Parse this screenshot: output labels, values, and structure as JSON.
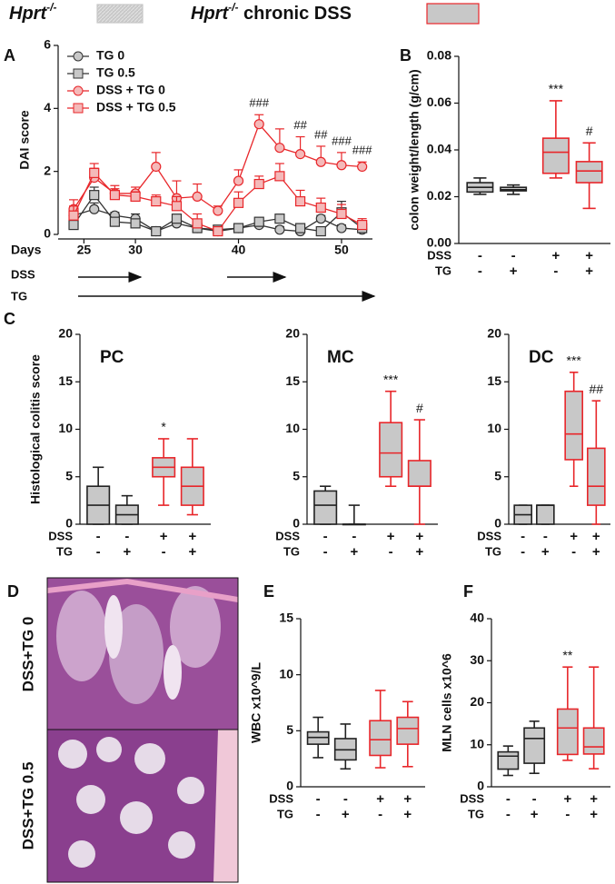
{
  "header": {
    "items": [
      {
        "text": "Hprt",
        "sup": "-/-",
        "fill": "#c8c8c8",
        "edge": "#c8c8c8"
      },
      {
        "text": "Hprt",
        "sup": "-/-",
        "suffix": " chronic DSS",
        "fill": "#c8c8c8",
        "edge": "#e8262a"
      }
    ]
  },
  "histology": {
    "panel": "D",
    "labels": [
      "DSS+TG  0",
      "DSS+TG  0.5"
    ]
  },
  "chart_data": [
    {
      "type": "line",
      "panel": "A",
      "ylabel": "DAI score",
      "xlabel": "Days",
      "arrow_labels": [
        "DSS",
        "TG"
      ],
      "x": [
        24,
        26,
        28,
        30,
        32,
        34,
        36,
        38,
        40,
        42,
        44,
        46,
        48,
        50,
        52
      ],
      "xlim": [
        22.5,
        53
      ],
      "xticks": [
        25,
        30,
        40,
        50
      ],
      "ylim": [
        0,
        6
      ],
      "yticks": [
        0,
        2,
        4,
        6
      ],
      "legend": "upper left",
      "series": [
        {
          "name": "TG 0",
          "marker": "circle",
          "color": "#333333",
          "fill": "#c8c8c8",
          "values": [
            0.6,
            0.8,
            0.6,
            0.5,
            0.1,
            0.35,
            0.2,
            0.1,
            0.2,
            0.3,
            0.15,
            0.1,
            0.5,
            0.2,
            0.15
          ],
          "errors": [
            0.1,
            0.2,
            0.1,
            0.15,
            0.1,
            0.1,
            0.1,
            0.05,
            0.1,
            0.1,
            0.1,
            0.1,
            0.1,
            0.1,
            0.1
          ]
        },
        {
          "name": "TG 0.5",
          "marker": "square",
          "color": "#333333",
          "fill": "#c8c8c8",
          "values": [
            0.3,
            1.25,
            0.4,
            0.35,
            0.1,
            0.5,
            0.2,
            0.15,
            0.2,
            0.4,
            0.5,
            0.2,
            0.1,
            0.7,
            0.2
          ],
          "errors": [
            0.1,
            0.25,
            0.1,
            0.1,
            0.05,
            0.1,
            0.1,
            0.05,
            0.1,
            0.1,
            0.1,
            0.1,
            0.05,
            0.35,
            0.1
          ]
        },
        {
          "name": "DSS + TG 0",
          "marker": "circle",
          "color": "#e8262a",
          "fill": "#f4b9b9",
          "values": [
            0.8,
            1.8,
            1.3,
            1.3,
            2.15,
            1.15,
            1.2,
            0.75,
            1.7,
            3.5,
            2.75,
            2.55,
            2.3,
            2.2,
            2.15
          ],
          "errors": [
            0.3,
            0.3,
            0.25,
            0.2,
            0.45,
            0.55,
            0.4,
            0.15,
            0.35,
            0.3,
            0.6,
            0.55,
            0.5,
            0.4,
            0.15
          ],
          "significance": [
            null,
            null,
            null,
            null,
            null,
            null,
            null,
            null,
            null,
            "###",
            null,
            "##",
            "##",
            "###",
            "###"
          ]
        },
        {
          "name": "DSS + TG 0.5",
          "marker": "square",
          "color": "#e8262a",
          "fill": "#f4b9b9",
          "values": [
            0.6,
            1.95,
            1.25,
            1.2,
            1.05,
            0.9,
            0.35,
            0.1,
            1.0,
            1.6,
            1.85,
            1.05,
            0.85,
            0.65,
            0.3
          ],
          "errors": [
            0.3,
            0.3,
            0.2,
            0.15,
            0.2,
            0.3,
            0.3,
            0.1,
            0.35,
            0.25,
            0.4,
            0.35,
            0.3,
            0.3,
            0.2
          ]
        }
      ]
    },
    {
      "type": "box",
      "panel": "B",
      "ylabel": "colon weight/length (g/cm)",
      "ylim": [
        0,
        0.08
      ],
      "yticks": [
        {
          "value": 0,
          "label": "0.00"
        },
        {
          "value": 0.02,
          "label": "0.02"
        },
        {
          "value": 0.04,
          "label": "0.04"
        },
        {
          "value": 0.06,
          "label": "0.06"
        },
        {
          "value": 0.08,
          "label": "0.08"
        }
      ],
      "fill": "#c8c8c8",
      "boxes": [
        {
          "low": 0.021,
          "q1": 0.022,
          "median": 0.024,
          "q3": 0.026,
          "high": 0.028,
          "color": "#222222"
        },
        {
          "low": 0.021,
          "q1": 0.0225,
          "median": 0.023,
          "q3": 0.024,
          "high": 0.025,
          "color": "#222222"
        },
        {
          "low": 0.028,
          "q1": 0.03,
          "median": 0.039,
          "q3": 0.045,
          "high": 0.061,
          "color": "#e8262a"
        },
        {
          "low": 0.015,
          "q1": 0.026,
          "median": 0.031,
          "q3": 0.035,
          "high": 0.043,
          "color": "#e8262a"
        }
      ],
      "significance": [
        null,
        null,
        "***",
        "#"
      ],
      "factors": [
        {
          "name": "DSS",
          "levels": [
            "-",
            "-",
            "+",
            "+"
          ]
        },
        {
          "name": "TG",
          "levels": [
            "-",
            "+",
            "-",
            "+"
          ]
        }
      ]
    },
    {
      "type": "box",
      "panel": "C",
      "title": "PC",
      "ylabel": "Histological colitis score",
      "ylim": [
        0,
        20
      ],
      "yticks": [
        0,
        5,
        10,
        15,
        20
      ],
      "fill": "#c8c8c8",
      "boxes": [
        {
          "low": 0,
          "q1": 0,
          "median": 2,
          "q3": 4,
          "high": 6,
          "color": "#222222"
        },
        {
          "low": 0,
          "q1": 0,
          "median": 1,
          "q3": 2,
          "high": 3,
          "color": "#222222"
        },
        {
          "low": 2,
          "q1": 5,
          "median": 6,
          "q3": 7,
          "high": 9,
          "color": "#e8262a"
        },
        {
          "low": 1,
          "q1": 2,
          "median": 4,
          "q3": 6,
          "high": 9,
          "color": "#e8262a"
        }
      ],
      "significance": [
        null,
        null,
        "*",
        null
      ],
      "factors": [
        {
          "name": "DSS",
          "levels": [
            "-",
            "-",
            "+",
            "+"
          ]
        },
        {
          "name": "TG",
          "levels": [
            "-",
            "+",
            "-",
            "+"
          ]
        }
      ]
    },
    {
      "type": "box",
      "title": "MC",
      "ylim": [
        0,
        20
      ],
      "yticks": [
        0,
        5,
        10,
        15,
        20
      ],
      "fill": "#c8c8c8",
      "boxes": [
        {
          "low": 0,
          "q1": 0,
          "median": 2,
          "q3": 3.5,
          "high": 4,
          "color": "#222222"
        },
        {
          "low": 0,
          "q1": 0,
          "median": 0,
          "q3": 0,
          "high": 2,
          "color": "#222222"
        },
        {
          "low": 4,
          "q1": 5,
          "median": 7.5,
          "q3": 10.7,
          "high": 14,
          "color": "#e8262a"
        },
        {
          "low": 0,
          "q1": 4,
          "median": 4,
          "q3": 6.7,
          "high": 11,
          "color": "#e8262a"
        }
      ],
      "significance": [
        null,
        null,
        "***",
        "#"
      ],
      "factors": [
        {
          "name": "DSS",
          "levels": [
            "-",
            "-",
            "+",
            "+"
          ]
        },
        {
          "name": "TG",
          "levels": [
            "-",
            "+",
            "-",
            "+"
          ]
        }
      ]
    },
    {
      "type": "box",
      "title": "DC",
      "ylim": [
        0,
        20
      ],
      "yticks": [
        0,
        5,
        10,
        15,
        20
      ],
      "fill": "#c8c8c8",
      "boxes": [
        {
          "low": 0,
          "q1": 0,
          "median": 1,
          "q3": 2,
          "high": 2,
          "color": "#222222"
        },
        {
          "low": 0,
          "q1": 0,
          "median": 2,
          "q3": 2,
          "high": 2,
          "color": "#222222"
        },
        {
          "low": 4,
          "q1": 6.8,
          "median": 9.5,
          "q3": 14,
          "high": 16,
          "color": "#e8262a"
        },
        {
          "low": 0,
          "q1": 2,
          "median": 4,
          "q3": 8,
          "high": 13,
          "color": "#e8262a"
        }
      ],
      "significance": [
        null,
        null,
        "***",
        "##"
      ],
      "factors": [
        {
          "name": "DSS",
          "levels": [
            "-",
            "-",
            "+",
            "+"
          ]
        },
        {
          "name": "TG",
          "levels": [
            "-",
            "+",
            "-",
            "+"
          ]
        }
      ]
    },
    {
      "type": "box",
      "panel": "E",
      "ylabel": "WBC x10^9/L",
      "ylim": [
        0,
        15
      ],
      "yticks": [
        0,
        5,
        10,
        15
      ],
      "fill": "#c8c8c8",
      "boxes": [
        {
          "low": 2.6,
          "q1": 3.8,
          "median": 4.4,
          "q3": 4.9,
          "high": 6.2,
          "color": "#222222"
        },
        {
          "low": 1.6,
          "q1": 2.4,
          "median": 3.3,
          "q3": 4.3,
          "high": 5.6,
          "color": "#222222"
        },
        {
          "low": 1.7,
          "q1": 2.8,
          "median": 4.2,
          "q3": 5.9,
          "high": 8.6,
          "color": "#e8262a"
        },
        {
          "low": 1.8,
          "q1": 3.8,
          "median": 5.2,
          "q3": 6.2,
          "high": 7.6,
          "color": "#e8262a"
        }
      ],
      "significance": [
        null,
        null,
        null,
        null
      ],
      "factors": [
        {
          "name": "DSS",
          "levels": [
            "-",
            "-",
            "+",
            "+"
          ]
        },
        {
          "name": "TG",
          "levels": [
            "-",
            "+",
            "-",
            "+"
          ]
        }
      ]
    },
    {
      "type": "box",
      "panel": "F",
      "ylabel": "MLN cells x10^6",
      "ylim": [
        0,
        40
      ],
      "yticks": [
        0,
        10,
        20,
        30,
        40
      ],
      "fill": "#c8c8c8",
      "boxes": [
        {
          "low": 2.7,
          "q1": 4.2,
          "median": 7.3,
          "q3": 8.3,
          "high": 9.7,
          "color": "#222222"
        },
        {
          "low": 3.2,
          "q1": 5.6,
          "median": 11.5,
          "q3": 14,
          "high": 15.6,
          "color": "#222222"
        },
        {
          "low": 6.3,
          "q1": 7.7,
          "median": 14,
          "q3": 18.5,
          "high": 28.5,
          "color": "#e8262a"
        },
        {
          "low": 4.3,
          "q1": 7.8,
          "median": 9.5,
          "q3": 14,
          "high": 28.5,
          "color": "#e8262a"
        }
      ],
      "significance": [
        null,
        null,
        "**",
        null
      ],
      "factors": [
        {
          "name": "DSS",
          "levels": [
            "-",
            "-",
            "+",
            "+"
          ]
        },
        {
          "name": "TG",
          "levels": [
            "-",
            "+",
            "-",
            "+"
          ]
        }
      ]
    }
  ]
}
